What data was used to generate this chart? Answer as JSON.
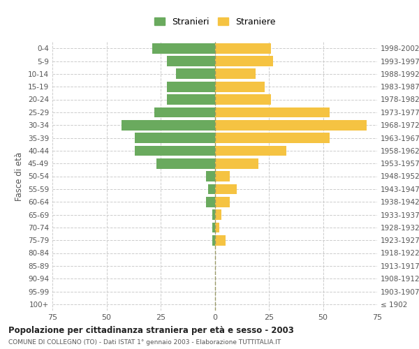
{
  "age_groups": [
    "100+",
    "95-99",
    "90-94",
    "85-89",
    "80-84",
    "75-79",
    "70-74",
    "65-69",
    "60-64",
    "55-59",
    "50-54",
    "45-49",
    "40-44",
    "35-39",
    "30-34",
    "25-29",
    "20-24",
    "15-19",
    "10-14",
    "5-9",
    "0-4"
  ],
  "birth_years": [
    "≤ 1902",
    "1903-1907",
    "1908-1912",
    "1913-1917",
    "1918-1922",
    "1923-1927",
    "1928-1932",
    "1933-1937",
    "1938-1942",
    "1943-1947",
    "1948-1952",
    "1953-1957",
    "1958-1962",
    "1963-1967",
    "1968-1972",
    "1973-1977",
    "1978-1982",
    "1983-1987",
    "1988-1992",
    "1993-1997",
    "1998-2002"
  ],
  "males": [
    0,
    0,
    0,
    0,
    0,
    1,
    1,
    1,
    4,
    3,
    4,
    27,
    37,
    37,
    43,
    28,
    22,
    22,
    18,
    22,
    29
  ],
  "females": [
    0,
    0,
    0,
    0,
    0,
    5,
    2,
    3,
    7,
    10,
    7,
    20,
    33,
    53,
    70,
    53,
    26,
    23,
    19,
    27,
    26
  ],
  "male_color": "#6aaa5e",
  "female_color": "#f5c342",
  "background_color": "#ffffff",
  "grid_color": "#cccccc",
  "title": "Popolazione per cittadinanza straniera per età e sesso - 2003",
  "subtitle": "COMUNE DI COLLEGNO (TO) - Dati ISTAT 1° gennaio 2003 - Elaborazione TUTTITALIA.IT",
  "ylabel_left": "Fasce di età",
  "legend_male": "Stranieri",
  "legend_female": "Straniere",
  "xlim": 75,
  "bar_height": 0.8
}
